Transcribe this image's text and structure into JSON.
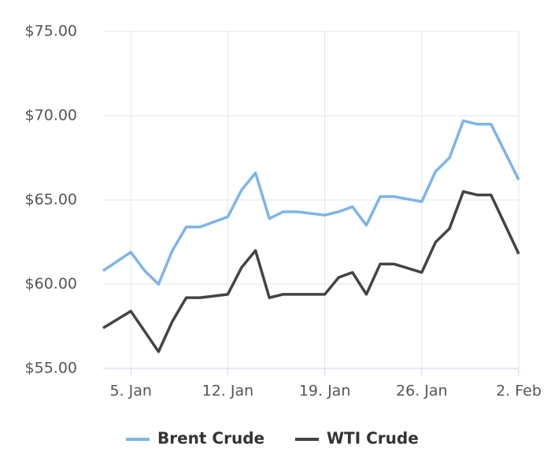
{
  "chart_data": {
    "type": "line",
    "x": [
      3,
      5,
      6,
      7,
      8,
      9,
      10,
      12,
      13,
      14,
      15,
      16,
      17,
      19,
      20,
      21,
      22,
      23,
      24,
      26,
      27,
      28,
      29,
      30,
      31,
      33
    ],
    "series": [
      {
        "name": "Brent Crude",
        "color": "#7cb5ec",
        "values": [
          60.8,
          61.9,
          60.8,
          60.0,
          62.0,
          63.4,
          63.4,
          64.0,
          65.6,
          66.6,
          63.9,
          64.3,
          64.3,
          64.1,
          64.3,
          64.6,
          63.5,
          65.2,
          65.2,
          64.9,
          66.7,
          67.5,
          69.7,
          69.5,
          69.5,
          66.2
        ]
      },
      {
        "name": "WTI Crude",
        "color": "#434348",
        "values": [
          57.4,
          58.4,
          57.2,
          56.0,
          57.8,
          59.2,
          59.2,
          59.4,
          61.0,
          62.0,
          59.2,
          59.4,
          59.4,
          59.4,
          60.4,
          60.7,
          59.4,
          61.2,
          61.2,
          60.7,
          62.5,
          63.3,
          65.5,
          65.3,
          65.3,
          61.8
        ]
      }
    ],
    "xlim": [
      3,
      33
    ],
    "xticks": [
      {
        "value": 5,
        "label": "5. Jan"
      },
      {
        "value": 12,
        "label": "12. Jan"
      },
      {
        "value": 19,
        "label": "19. Jan"
      },
      {
        "value": 26,
        "label": "26. Jan"
      },
      {
        "value": 33,
        "label": "2. Feb"
      }
    ],
    "ylim": [
      55,
      75
    ],
    "yticks": [
      {
        "value": 55,
        "label": "$55.00"
      },
      {
        "value": 60,
        "label": "$60.00"
      },
      {
        "value": 65,
        "label": "$65.00"
      },
      {
        "value": 70,
        "label": "$70.00"
      },
      {
        "value": 75,
        "label": "$75.00"
      }
    ],
    "grid": true,
    "legend": "bottom"
  }
}
